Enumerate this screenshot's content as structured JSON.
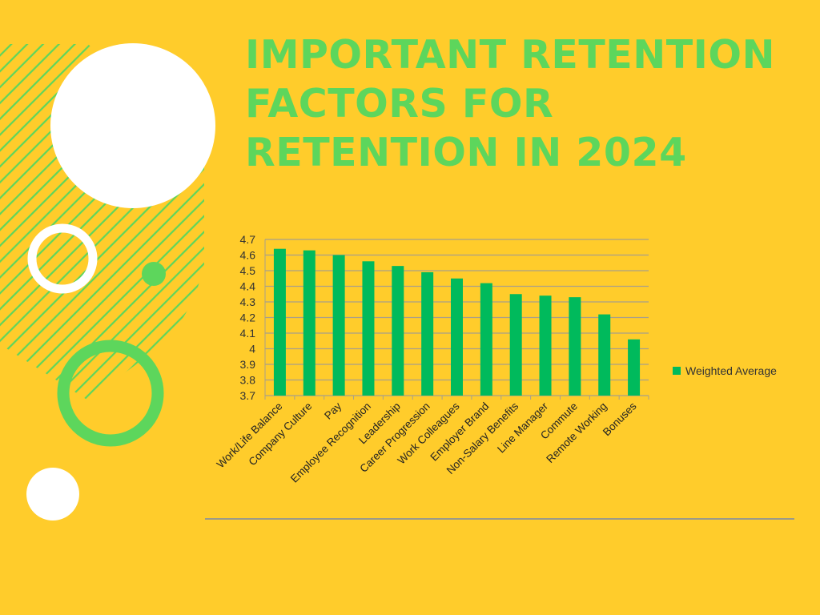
{
  "title": "IMPORTANT RETENTION\nFACTORS FOR\nRETENTION IN 2024",
  "colors": {
    "background": "#FFCC2B",
    "title": "#5DD65C",
    "bar": "#00BA5C",
    "white": "#FFFFFF"
  },
  "chart_data": {
    "type": "bar",
    "title": "",
    "xlabel": "",
    "ylabel": "",
    "ylim": [
      3.7,
      4.7
    ],
    "yticks": [
      "4.7",
      "4.6",
      "4.5",
      "4.4",
      "4.3",
      "4.2",
      "4.1",
      "4",
      "3.9",
      "3.8",
      "3.7"
    ],
    "grid": true,
    "legend": "right",
    "categories": [
      "Work/Life Balance",
      "Company Culture",
      "Pay",
      "Employee Recognition",
      "Leadership",
      "Career Progression",
      "Work Colleagues",
      "Employer Brand",
      "Non-Salary Benefits",
      "Line Manager",
      "Commute",
      "Remote Working",
      "Bonuses"
    ],
    "series": [
      {
        "name": "Weighted Average",
        "values": [
          4.64,
          4.63,
          4.6,
          4.56,
          4.53,
          4.49,
          4.45,
          4.42,
          4.35,
          4.34,
          4.33,
          4.22,
          4.06
        ]
      }
    ]
  }
}
